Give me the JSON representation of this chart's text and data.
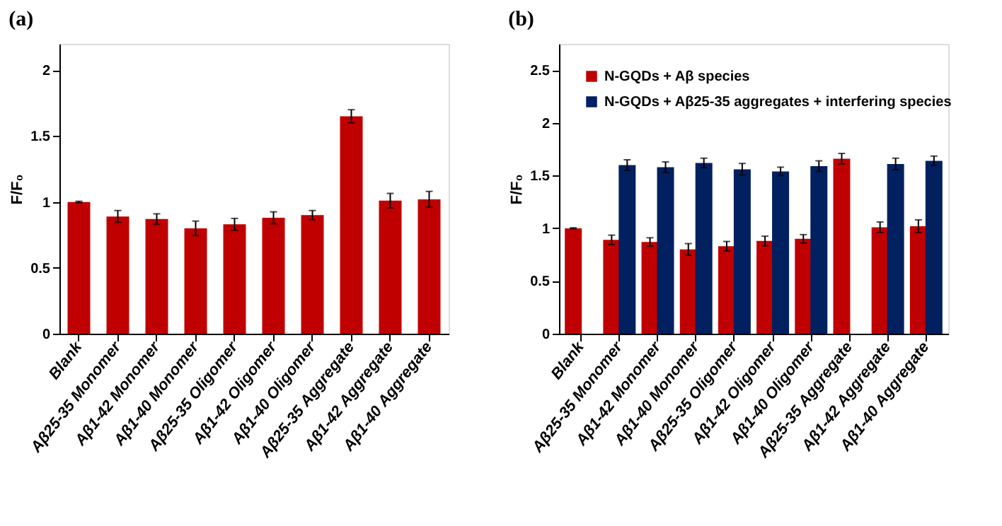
{
  "chart_data": [
    {
      "type": "bar",
      "title": "(a)",
      "ylabel": "F/F₀",
      "categories": [
        "Blank",
        "Aβ25-35 Monomer",
        "Aβ1-42 Monomer",
        "Aβ1-40 Monomer",
        "Aβ25-35 Oligomer",
        "Aβ1-42 Oligomer",
        "Aβ1-40 Oligomer",
        "Aβ25-35 Aggregate",
        "Aβ1-42 Aggregate",
        "Aβ1-40 Aggregate"
      ],
      "series": [
        {
          "color": "#c00000",
          "values": [
            1.0,
            0.89,
            0.87,
            0.8,
            0.83,
            0.88,
            0.9,
            1.65,
            1.01,
            1.02
          ],
          "errors": [
            0.005,
            0.045,
            0.04,
            0.055,
            0.045,
            0.045,
            0.035,
            0.05,
            0.055,
            0.06
          ]
        }
      ],
      "ylim": [
        0,
        2.2
      ],
      "yticks": [
        0,
        0.5,
        1,
        1.5,
        2
      ],
      "grid": false,
      "legend": false
    },
    {
      "type": "bar",
      "title": "(b)",
      "ylabel": "F/F₀",
      "categories": [
        "Blank",
        "Aβ25-35 Monomer",
        "Aβ1-42 Monomer",
        "Aβ1-40 Monomer",
        "Aβ25-35 Oligomer",
        "Aβ1-42 Oligomer",
        "Aβ1-40 Oligomer",
        "Aβ25-35 Aggregate",
        "Aβ1-42 Aggregate",
        "Aβ1-40 Aggregate"
      ],
      "series": [
        {
          "name": "N-GQDs + Aβ species",
          "color": "#c00000",
          "values": [
            1.0,
            0.89,
            0.87,
            0.8,
            0.83,
            0.88,
            0.9,
            1.66,
            1.01,
            1.02
          ],
          "errors": [
            0.005,
            0.045,
            0.04,
            0.055,
            0.045,
            0.045,
            0.04,
            0.05,
            0.05,
            0.06
          ]
        },
        {
          "name": "N-GQDs + Aβ25-35 aggregates + interfering species",
          "color": "#002060",
          "values": [
            null,
            1.6,
            1.58,
            1.62,
            1.56,
            1.54,
            1.59,
            null,
            1.61,
            1.64
          ],
          "errors": [
            null,
            0.05,
            0.05,
            0.045,
            0.055,
            0.04,
            0.05,
            null,
            0.055,
            0.045
          ]
        }
      ],
      "ylim": [
        0,
        2.75
      ],
      "yticks": [
        0,
        0.5,
        1,
        1.5,
        2,
        2.5
      ],
      "grid": false,
      "legend": "top left"
    }
  ]
}
